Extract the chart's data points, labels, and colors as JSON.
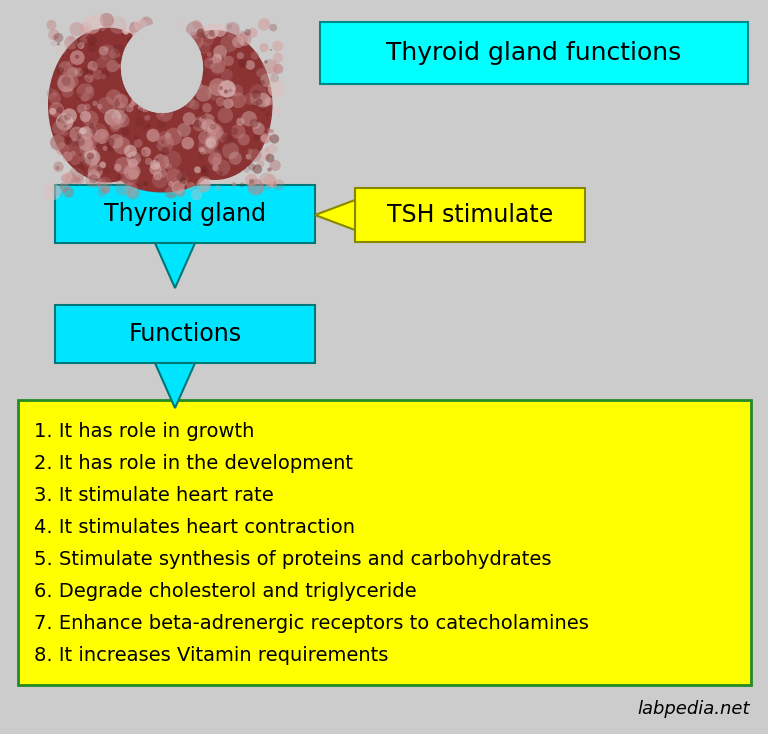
{
  "background_color": "#cccccc",
  "title_box_color": "#00ffff",
  "title_text": "Thyroid gland functions",
  "title_text_color": "#000000",
  "thyroid_gland_box_color": "#00e5ff",
  "thyroid_gland_text": "Thyroid gland",
  "tsh_box_color": "#ffff00",
  "tsh_text": "TSH stimulate",
  "functions_box_color": "#00e5ff",
  "functions_text": "Functions",
  "yellow_box_color": "#ffff00",
  "yellow_box_border": "#228B22",
  "list_items": [
    "1. It has role in growth",
    "2. It has role in the development",
    "3. It stimulate heart rate",
    "4. It stimulates heart contraction",
    "5. Stimulate synthesis of proteins and carbohydrates",
    "6. Degrade cholesterol and triglyceride",
    "7. Enhance beta-adrenergic receptors to catecholamines",
    "8. It increases Vitamin requirements"
  ],
  "list_text_color": "#000000",
  "watermark": "labpedia.net",
  "watermark_color": "#000000",
  "lobe_color": "#8B3333",
  "lobe_light": "#c9a0a0"
}
